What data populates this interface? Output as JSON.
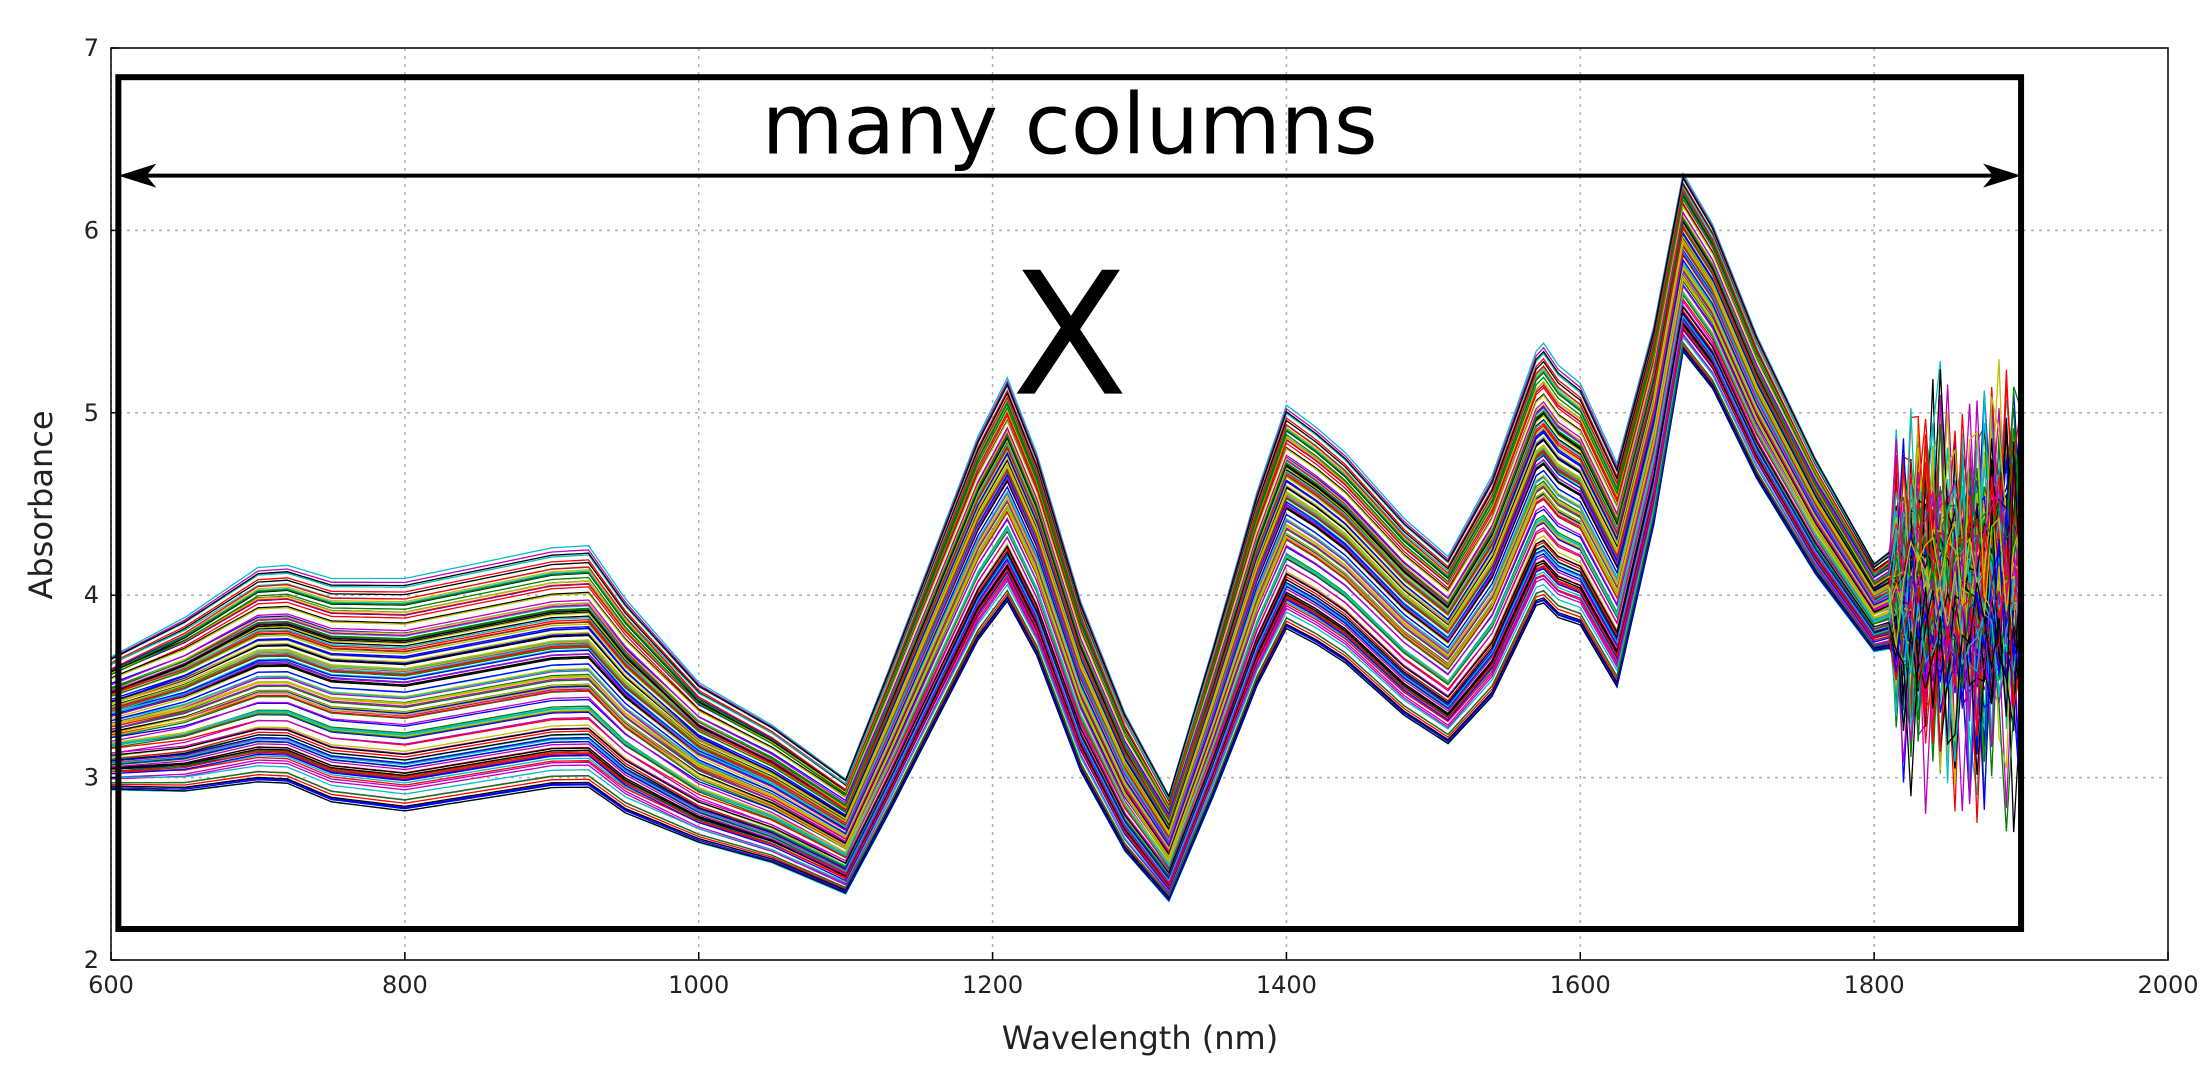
{
  "chart_data": {
    "type": "line",
    "title": "",
    "xlabel": "Wavelength (nm)",
    "ylabel": "Absorbance",
    "xlim": [
      600,
      2000
    ],
    "ylim": [
      2,
      7
    ],
    "xticks": [
      600,
      800,
      1000,
      1200,
      1400,
      1600,
      1800,
      2000
    ],
    "yticks": [
      2,
      3,
      4,
      5,
      6,
      7
    ],
    "grid": true,
    "legend": "none",
    "series_count_note": "many overlapping spectra (hundreds)",
    "mean_spectrum": {
      "x": [
        600,
        650,
        700,
        720,
        750,
        800,
        850,
        900,
        925,
        950,
        1000,
        1050,
        1100,
        1130,
        1160,
        1190,
        1210,
        1230,
        1260,
        1290,
        1320,
        1350,
        1380,
        1400,
        1420,
        1440,
        1480,
        1510,
        1540,
        1570,
        1585,
        1600,
        1625,
        1650,
        1670,
        1690,
        1720,
        1760,
        1800,
        1820,
        1840,
        1860,
        1880,
        1900
      ],
      "values": [
        3.3,
        3.35,
        3.55,
        3.6,
        3.45,
        3.5,
        3.55,
        3.6,
        3.55,
        3.3,
        3.1,
        2.95,
        2.65,
        3.2,
        3.8,
        4.4,
        4.55,
        4.2,
        3.2,
        2.7,
        2.6,
        3.3,
        4.1,
        4.4,
        4.35,
        4.25,
        3.85,
        3.7,
        3.85,
        4.6,
        4.45,
        4.5,
        3.9,
        4.6,
        5.75,
        5.6,
        4.9,
        4.3,
        3.95,
        4.1,
        4.15,
        4.05,
        4.1,
        4.0
      ]
    },
    "spread": {
      "x": [
        600,
        700,
        800,
        925,
        1000,
        1100,
        1210,
        1320,
        1400,
        1510,
        1575,
        1625,
        1670,
        1800,
        1900
      ],
      "low": [
        2.95,
        3.0,
        2.8,
        3.0,
        2.65,
        2.4,
        4.0,
        2.35,
        3.85,
        3.2,
        4.05,
        3.65,
        5.4,
        3.7,
        3.6
      ],
      "high": [
        3.7,
        4.2,
        4.1,
        4.35,
        3.55,
        3.05,
        5.25,
        2.95,
        5.1,
        4.25,
        5.5,
        4.9,
        6.4,
        4.2,
        4.6
      ]
    },
    "annotations": {
      "label_top": "many columns",
      "label_center": "X",
      "box": {
        "x0": 605,
        "x1": 1900,
        "y0": 2.17,
        "y1": 6.84
      },
      "arrow": {
        "x0": 605,
        "x1": 1900,
        "y": 6.3
      }
    },
    "palette": [
      "#0000ff",
      "#008000",
      "#ff0000",
      "#00bfbf",
      "#bf00bf",
      "#bfbf00",
      "#000000"
    ]
  }
}
